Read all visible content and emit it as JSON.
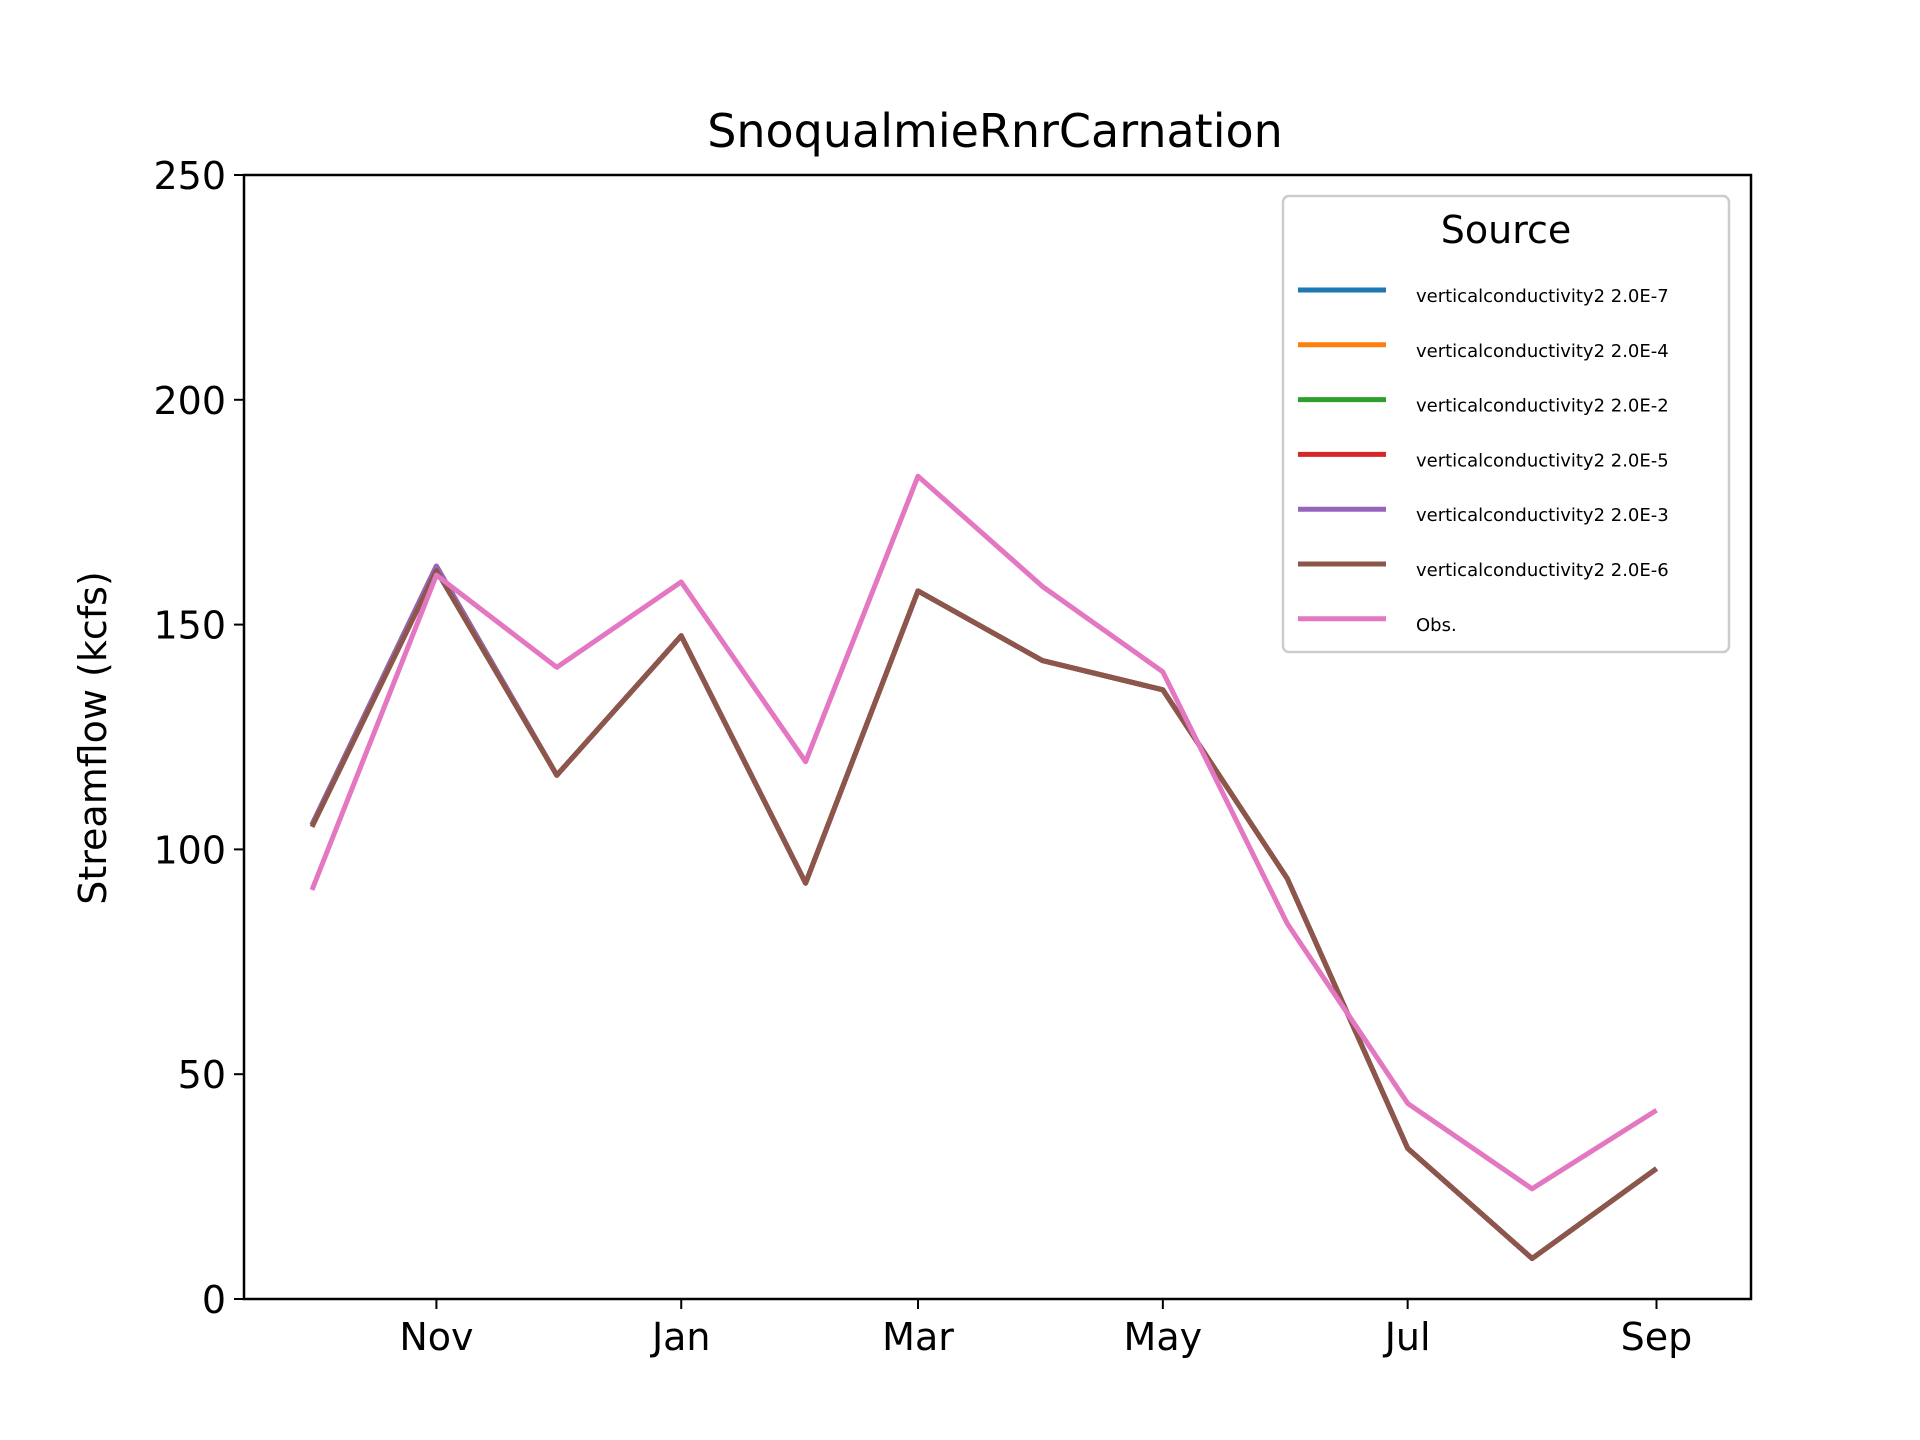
{
  "chart_data": {
    "type": "line",
    "title": "SnoqualmieRnrCarnation",
    "xlabel": "",
    "ylabel": "Streamflow (kcfs)",
    "ylim": [
      0,
      250
    ],
    "y_ticks": [
      0,
      50,
      100,
      150,
      200,
      250
    ],
    "x_ticks": [
      "Nov",
      "Jan",
      "Mar",
      "May",
      "Jul",
      "Sep"
    ],
    "x": [
      "Oct 1",
      "Nov 1",
      "Dec 1",
      "Jan 1",
      "Feb 1",
      "Mar 1",
      "Apr 1",
      "May 1",
      "Jun 1",
      "Jul 1",
      "Aug 1",
      "Sep 1"
    ],
    "grid": false,
    "legend": {
      "title": "Source",
      "position": "top-right"
    },
    "series": [
      {
        "name": "verticalconductivity2 2.0E-7",
        "color": "#1f77b4",
        "values": [
          105.5,
          163,
          116.5,
          147.5,
          92.5,
          157.5,
          142,
          135.5,
          93.5,
          33.5,
          9,
          29
        ]
      },
      {
        "name": "verticalconductivity2 2.0E-4",
        "color": "#ff7f0e",
        "values": [
          105.5,
          163,
          116.5,
          147.5,
          92.5,
          157.5,
          142,
          135.5,
          93.5,
          33.5,
          9,
          29
        ]
      },
      {
        "name": "verticalconductivity2 2.0E-2",
        "color": "#2ca02c",
        "values": [
          105.5,
          163,
          116.5,
          147.5,
          92.5,
          157.5,
          142,
          135.5,
          93.5,
          33.5,
          9,
          29
        ]
      },
      {
        "name": "verticalconductivity2 2.0E-5",
        "color": "#d62728",
        "values": [
          105.5,
          163,
          116.5,
          147.5,
          92.5,
          157.5,
          142,
          135.5,
          93.5,
          33.5,
          9,
          29
        ]
      },
      {
        "name": "verticalconductivity2 2.0E-3",
        "color": "#9467bd",
        "values": [
          105.5,
          163,
          116.5,
          147.5,
          92.5,
          157.5,
          142,
          135.5,
          93.5,
          33.5,
          9,
          29
        ]
      },
      {
        "name": "verticalconductivity2 2.0E-6",
        "color": "#8c564b",
        "values": [
          105,
          162,
          116.5,
          147.5,
          92.5,
          157.5,
          142,
          135.5,
          93.5,
          33.5,
          9,
          29
        ]
      },
      {
        "name": "Obs.",
        "color": "#e377c2",
        "values": [
          91,
          161,
          140.5,
          159.5,
          119.5,
          183,
          158.5,
          139.5,
          83.5,
          43.5,
          24.5,
          42
        ]
      }
    ]
  }
}
